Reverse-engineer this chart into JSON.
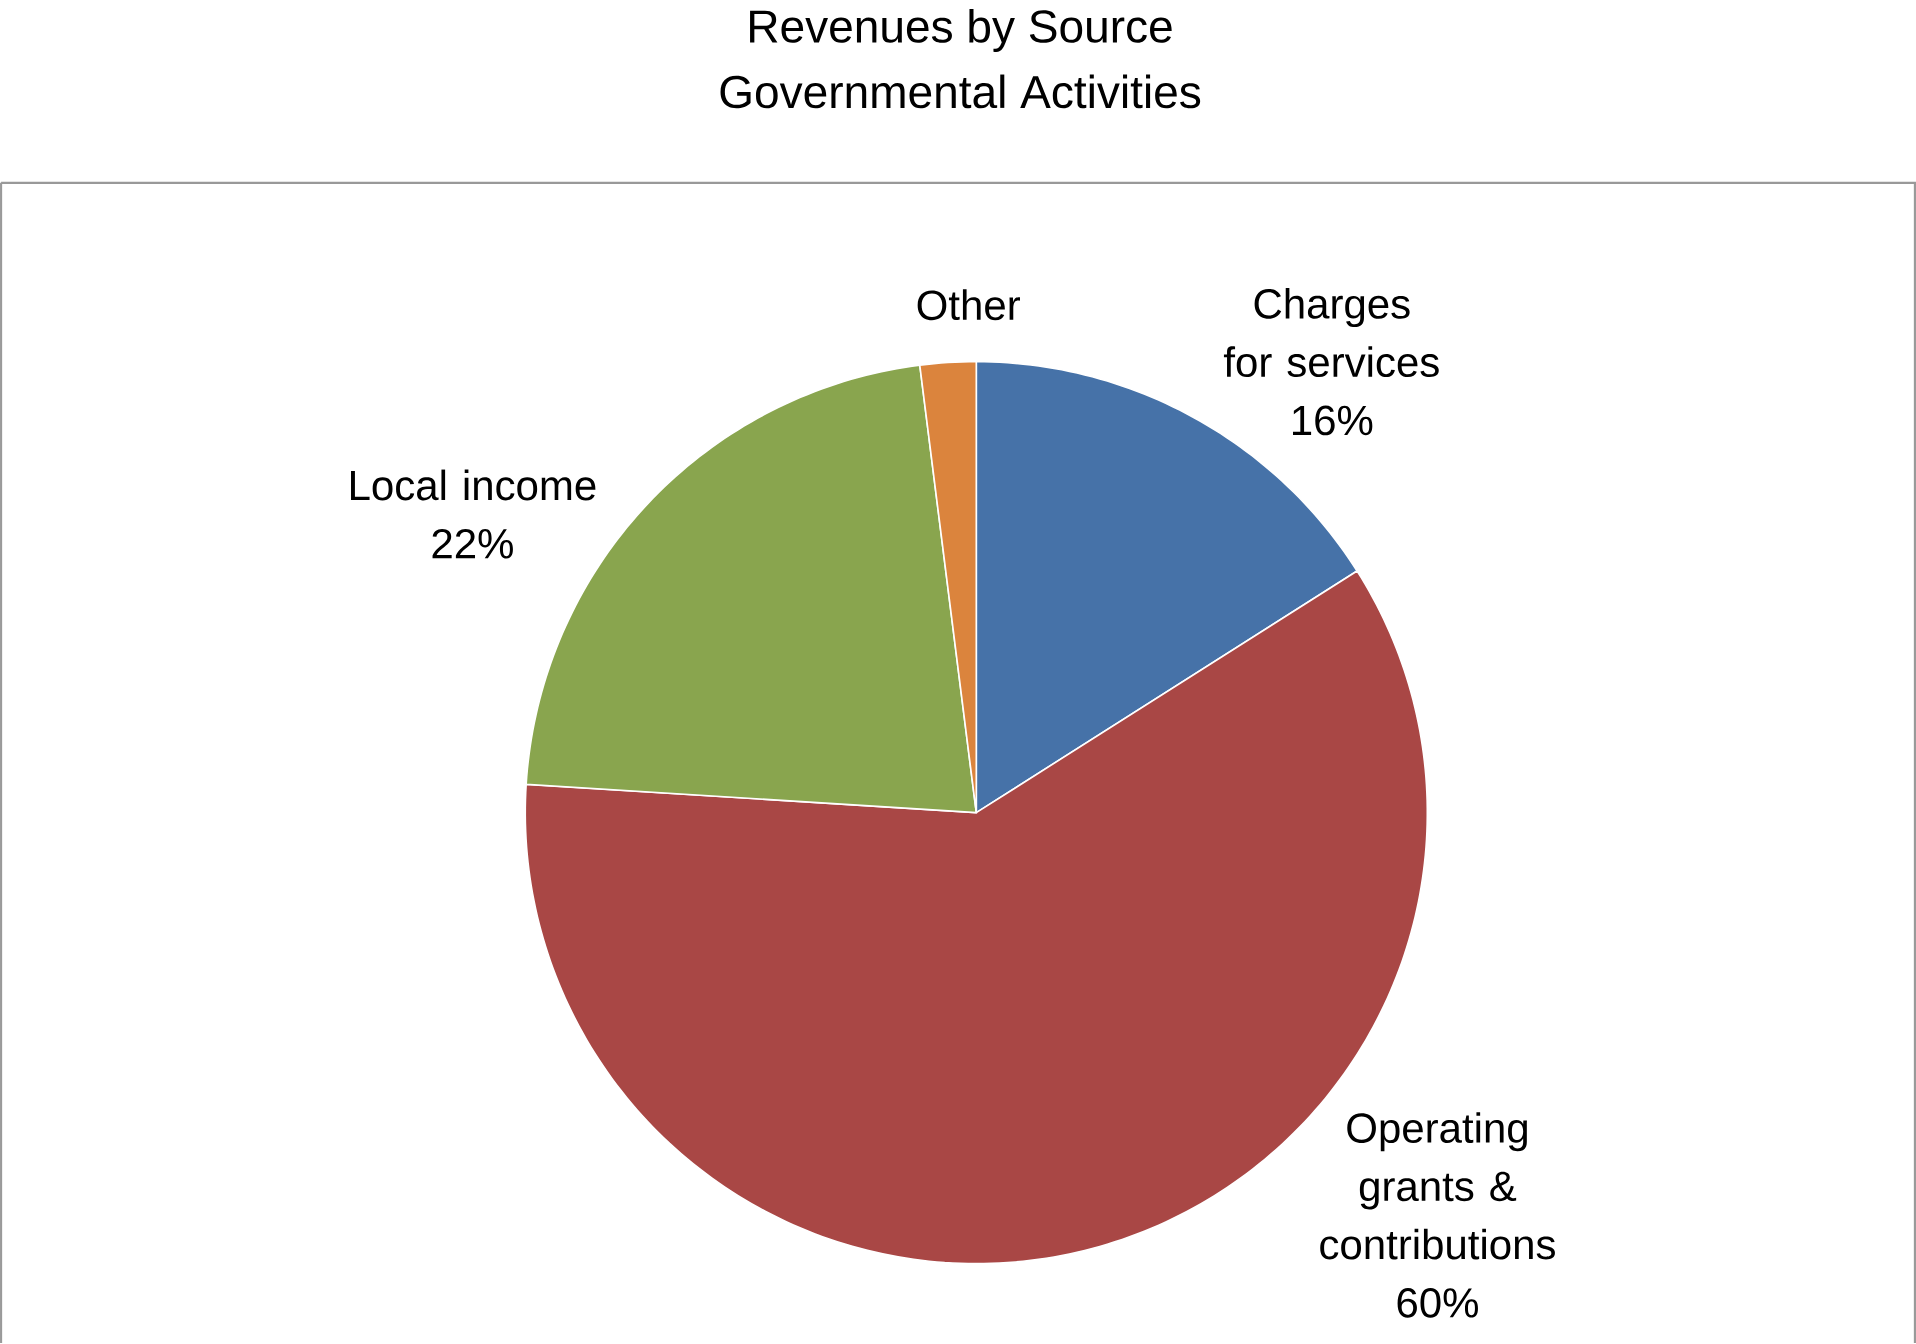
{
  "chart_data": {
    "type": "pie",
    "title": "Revenues by Source",
    "subtitle": "Governmental Activities",
    "categories": [
      "Charges for services",
      "Operating grants & contributions",
      "Local income",
      "Other"
    ],
    "values": [
      16,
      60,
      22,
      2
    ],
    "value_labels": [
      "16%",
      "60%",
      "22%",
      null
    ],
    "colors": [
      "#4672a8",
      "#a94745",
      "#89a54e",
      "#db843d"
    ]
  }
}
